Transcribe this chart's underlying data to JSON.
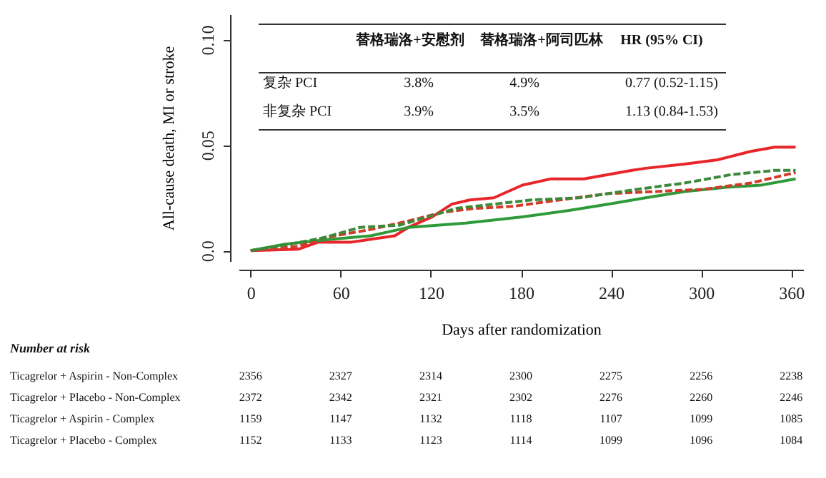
{
  "chart_data": {
    "type": "line",
    "xlabel": "Days after randomization",
    "ylabel": "All-cause death, MI or stroke",
    "xlim": [
      -8,
      368
    ],
    "ylim": [
      -0.005,
      0.112
    ],
    "xticks": [
      0,
      60,
      120,
      180,
      240,
      300,
      360
    ],
    "yticks": [
      {
        "value": 0,
        "label": "0.0"
      },
      0.05,
      {
        "value": 0.1,
        "label": "0.10"
      }
    ],
    "series": [
      {
        "color": "#e8262a",
        "line_style": "solid",
        "x": [
          0,
          32,
          45,
          67,
          96,
          105,
          121,
          134,
          146,
          162,
          181,
          200,
          222,
          254,
          263,
          289,
          311,
          333,
          349,
          363
        ],
        "values": [
          0,
          0.0007,
          0.004,
          0.004,
          0.007,
          0.011,
          0.016,
          0.022,
          0.024,
          0.025,
          0.031,
          0.034,
          0.034,
          0.038,
          0.039,
          0.041,
          0.043,
          0.047,
          0.049,
          0.049
        ]
      },
      {
        "color": "#2e9a3a",
        "line_style": "solid",
        "x": [
          0,
          23,
          48,
          80,
          99,
          105,
          143,
          181,
          212,
          238,
          263,
          289,
          317,
          340,
          363
        ],
        "values": [
          0,
          0.003,
          0.005,
          0.007,
          0.01,
          0.011,
          0.013,
          0.016,
          0.019,
          0.022,
          0.025,
          0.028,
          0.03,
          0.031,
          0.034
        ]
      },
      {
        "color": "#d33a2a",
        "line_style": "dashed",
        "x": [
          0,
          32,
          48,
          80,
          105,
          127,
          149,
          175,
          206,
          238,
          270,
          301,
          333,
          363
        ],
        "values": [
          0,
          0.002,
          0.006,
          0.01,
          0.014,
          0.018,
          0.02,
          0.021,
          0.024,
          0.027,
          0.028,
          0.029,
          0.032,
          0.037
        ]
      },
      {
        "color": "#3a8a3a",
        "line_style": "dashed",
        "x": [
          0,
          26,
          48,
          73,
          99,
          118,
          137,
          162,
          187,
          219,
          257,
          289,
          320,
          349,
          363
        ],
        "values": [
          0,
          0.003,
          0.006,
          0.011,
          0.012,
          0.016,
          0.02,
          0.022,
          0.024,
          0.025,
          0.029,
          0.032,
          0.036,
          0.038,
          0.038
        ]
      }
    ],
    "annotations": [
      "替格瑞洛+安慰剂",
      "替格瑞洛+阿司匹林",
      "HR (95% CI)",
      "复杂 PCI",
      "3.8%",
      "4.9%",
      "0.77 (0.52-1.15)",
      "非复杂 PCI",
      "3.9%",
      "3.5%",
      "1.13 (0.84-1.53)",
      "Number at risk",
      "Ticagrelor + Aspirin - Non-Complex",
      "2356",
      "2327",
      "2314",
      "2300",
      "2275",
      "2256",
      "2238",
      "Ticagrelor + Placebo - Non-Complex",
      "2372",
      "2342",
      "2321",
      "2302",
      "2276",
      "2260",
      "2246",
      "Ticagrelor + Aspirin - Complex",
      "1159",
      "1147",
      "1132",
      "1118",
      "1107",
      "1099",
      "1085",
      "Ticagrelor + Placebo - Complex",
      "1152",
      "1133",
      "1123",
      "1114",
      "1099",
      "1096",
      "1084"
    ]
  }
}
